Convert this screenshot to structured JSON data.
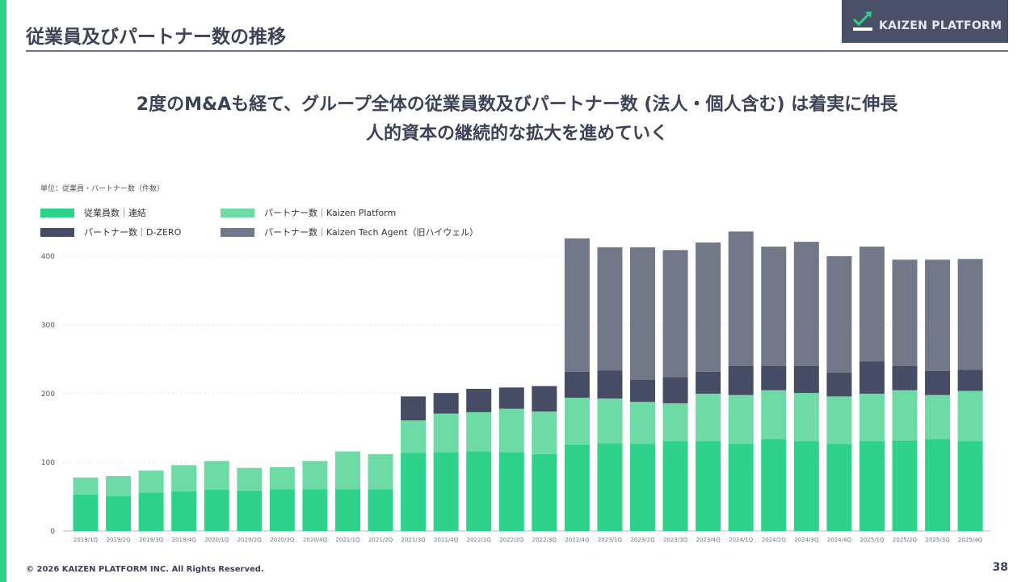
{
  "header": {
    "title": "従業員及びパートナー数の推移",
    "logo_text": "KAIZEN PLATFORM"
  },
  "headline": {
    "line1": "2度のM&Aも経て、グループ全体の従業員数及びパートナー数 (法人・個人含む) は着実に伸長",
    "line2": "人的資本の継続的な拡大を進めていく"
  },
  "footer": {
    "copyright": "© 2026 KAIZEN PLATFORM INC. All Rights Reserved.",
    "page": "38"
  },
  "chart_data": {
    "type": "bar",
    "stacked": true,
    "unit_label": "単位：従業員・パートナー数（件数）",
    "categories": [
      "2019/1Q",
      "2019/2Q",
      "2019/3Q",
      "2019/4Q",
      "2020/1Q",
      "2020/2Q",
      "2020/3Q",
      "2020/4Q",
      "2021/1Q",
      "2021/2Q",
      "2021/3Q",
      "2021/4Q",
      "2022/1Q",
      "2022/2Q",
      "2022/3Q",
      "2022/4Q",
      "2023/1Q",
      "2023/2Q",
      "2023/3Q",
      "2023/4Q",
      "2024/1Q",
      "2024/2Q",
      "2024/3Q",
      "2024/4Q",
      "2025/1Q",
      "2025/2Q",
      "2025/3Q",
      "2025/4Q"
    ],
    "series": [
      {
        "name": "従業員数｜連結",
        "color": "#2ed28a",
        "values": [
          53,
          51,
          56,
          58,
          60,
          59,
          61,
          61,
          61,
          61,
          114,
          115,
          116,
          115,
          112,
          126,
          128,
          127,
          131,
          131,
          127,
          134,
          131,
          127,
          131,
          132,
          134,
          131
        ]
      },
      {
        "name": "パートナー数｜Kaizen Platform",
        "color": "#6edba7",
        "values": [
          25,
          29,
          32,
          38,
          42,
          33,
          32,
          41,
          55,
          51,
          47,
          56,
          57,
          63,
          62,
          68,
          65,
          61,
          55,
          69,
          71,
          71,
          70,
          69,
          69,
          73,
          64,
          73
        ]
      },
      {
        "name": "パートナー数｜D-ZERO",
        "color": "#464c63",
        "values": [
          0,
          0,
          0,
          0,
          0,
          0,
          0,
          0,
          0,
          0,
          35,
          30,
          34,
          31,
          37,
          38,
          41,
          32,
          38,
          32,
          42,
          35,
          39,
          35,
          47,
          35,
          35,
          31
        ]
      },
      {
        "name": "パートナー数｜Kaizen Tech Agent（旧ハイウェル）",
        "color": "#737888",
        "values": [
          0,
          0,
          0,
          0,
          0,
          0,
          0,
          0,
          0,
          0,
          0,
          0,
          0,
          0,
          0,
          194,
          179,
          193,
          185,
          188,
          196,
          174,
          181,
          169,
          167,
          155,
          162,
          161
        ]
      }
    ],
    "yticks": [
      "0",
      "100",
      "200",
      "300",
      "400"
    ],
    "ylim": [
      0,
      440
    ],
    "grid": true,
    "legend_position": "top-left"
  }
}
